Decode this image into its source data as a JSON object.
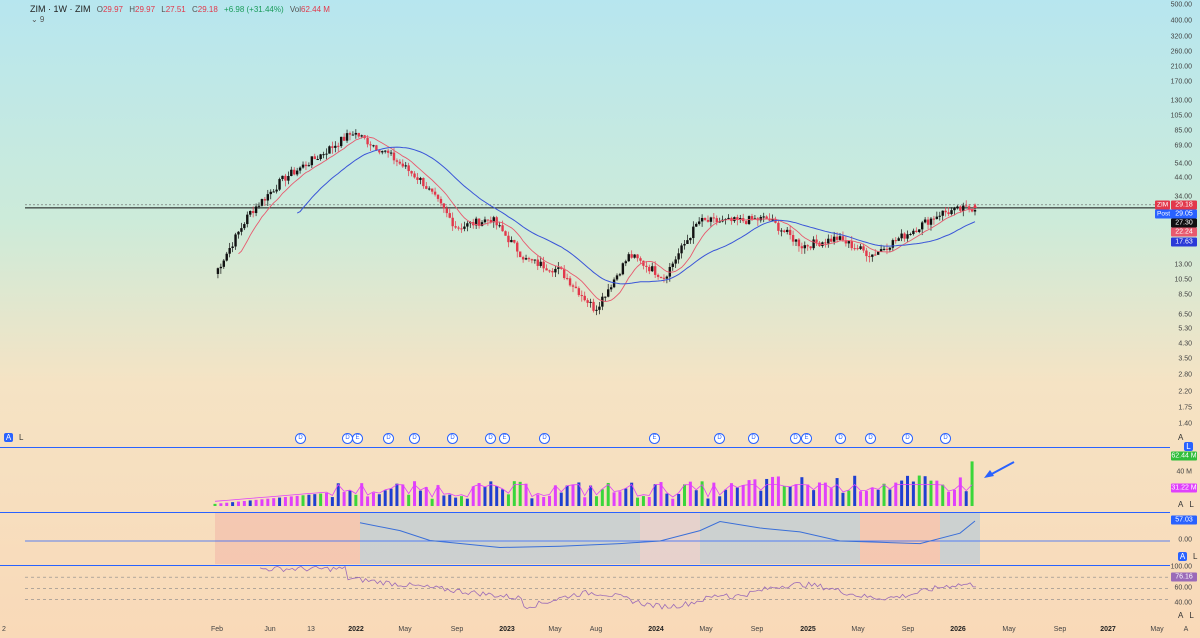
{
  "legend": {
    "symbol": "ZIM · 1W · ZIM",
    "open_label": "O",
    "open": "29.97",
    "high_label": "H",
    "high": "29.97",
    "low_label": "L",
    "low": "27.51",
    "close_label": "C",
    "close": "29.18",
    "change": "+6.98 (+31.44%)",
    "vol_label": "Vol",
    "vol": "62.44 M",
    "collapse": "⌄ 9"
  },
  "price_axis": [
    "500.00",
    "400.00",
    "320.00",
    "260.00",
    "210.00",
    "170.00",
    "130.00",
    "105.00",
    "85.00",
    "69.00",
    "54.00",
    "44.00",
    "34.00",
    "13.00",
    "10.50",
    "8.50",
    "6.50",
    "5.30",
    "4.30",
    "3.50",
    "2.80",
    "2.20",
    "1.75",
    "1.40"
  ],
  "price_tags": {
    "zim_label": "ZIM",
    "zim_value": "29.18",
    "post_label": "Post",
    "post_value": "29.05",
    "last_dark": "27.30",
    "ma_fast": "22.24",
    "ma_slow": "17.63"
  },
  "volume_axis": {
    "upper": "40 M",
    "tag_value": "62.44 M",
    "ma_tag": "31.22 M"
  },
  "osc_axis": {
    "value": "57.03",
    "zero": "0.00"
  },
  "rsi_axis": {
    "value": "76.16",
    "top": "100.00",
    "mid": "60.00",
    "low": "40.00"
  },
  "pane_controls": {
    "a": "A",
    "l": "L"
  },
  "earnings_markers": [
    "D",
    "D",
    "E",
    "D",
    "D",
    "D",
    "D",
    "E",
    "D",
    "E",
    "D",
    "D",
    "D",
    "E",
    "D",
    "D",
    "D",
    "D"
  ],
  "time_axis": [
    "Feb",
    "Jun",
    "13",
    "2022",
    "May",
    "Sep",
    "2023",
    "May",
    "Aug",
    "2024",
    "May",
    "Sep",
    "2025",
    "May",
    "Sep",
    "2026",
    "May",
    "Sep",
    "2027",
    "May"
  ],
  "time_axis_edges": {
    "left": "2",
    "right": "A"
  },
  "colors": {
    "up": "#111111",
    "down": "#e2384b",
    "ma_fast": "#e85a6e",
    "ma_slow": "#3a55d8",
    "vol_magenta": "#e040fb",
    "vol_blue": "#1f3fd0",
    "vol_green": "#3ad63a",
    "osc_line": "#3a6fd8",
    "rsi_line": "#9a6ab8",
    "accent": "#2962ff"
  },
  "chart_data": [
    {
      "type": "candlestick",
      "title": "ZIM · 1W · ZIM",
      "scale": "log",
      "ylim": [
        1.4,
        500
      ],
      "x": [
        "2021-02",
        "2021-06",
        "2021-09",
        "2022-01",
        "2022-03",
        "2022-05",
        "2022-09",
        "2022-11",
        "2023-02",
        "2023-05",
        "2023-08",
        "2023-11",
        "2024-02",
        "2024-04",
        "2024-07",
        "2024-09",
        "2024-12",
        "2025-03",
        "2025-05",
        "2025-08",
        "2025-10",
        "2026-01",
        "2026-02"
      ],
      "series": [
        {
          "name": "ZIM",
          "values": [
            11.5,
            27,
            44,
            60,
            84,
            62,
            42,
            22,
            25,
            14,
            12,
            7,
            15,
            11,
            24,
            24,
            25,
            17,
            19,
            15,
            20,
            27,
            29.18
          ]
        }
      ],
      "horizontal_line": 29.05
    },
    {
      "type": "bar",
      "values_max": 62.44,
      "last": 62.44,
      "ma": 31.22,
      "ylabel": "Vol"
    },
    {
      "type": "line",
      "last": 57.03,
      "zero": 0.0
    },
    {
      "type": "line",
      "last": 76.16,
      "levels": [
        100,
        60,
        40
      ]
    }
  ]
}
